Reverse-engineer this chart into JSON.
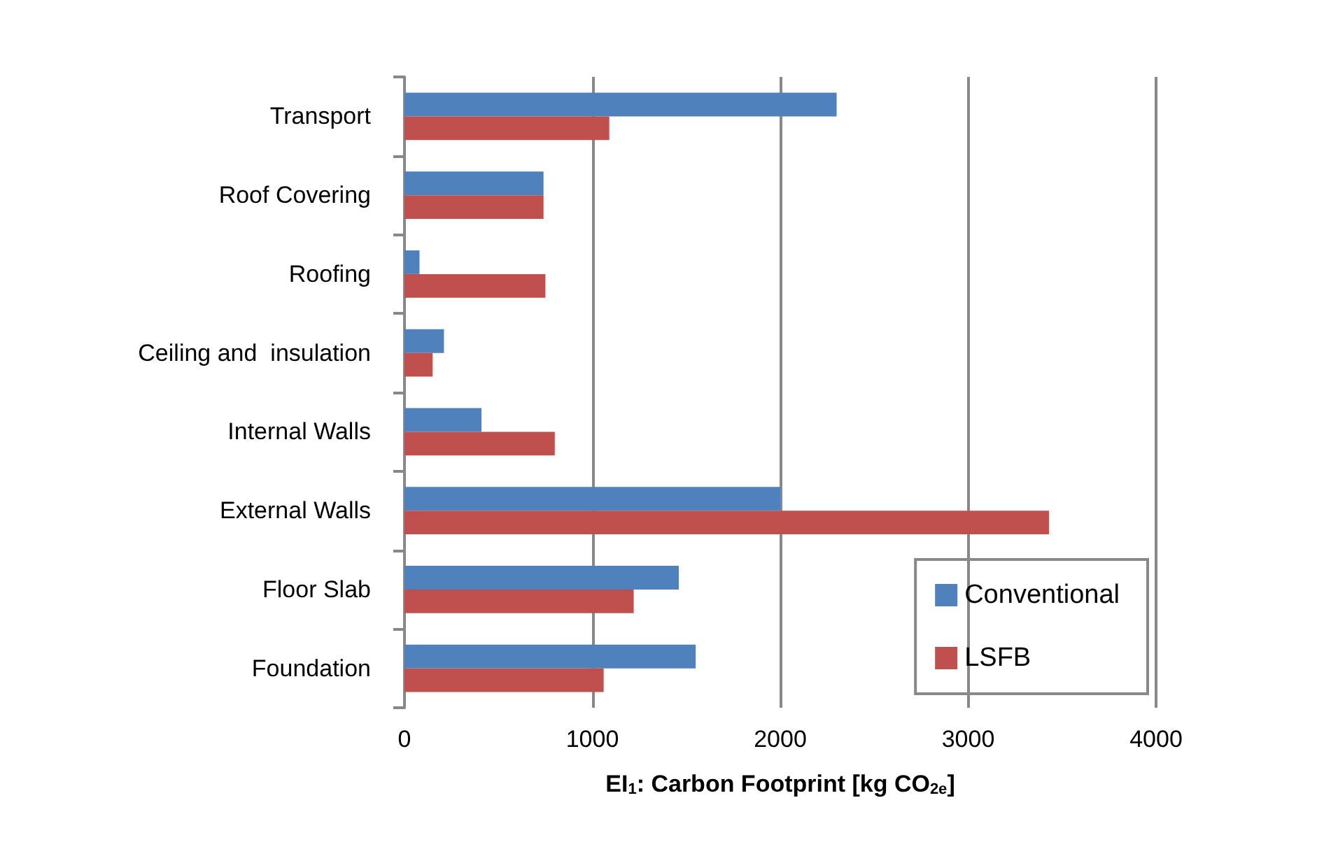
{
  "chart_data": {
    "type": "bar",
    "orientation": "horizontal",
    "categories": [
      "Transport",
      "Roof Covering",
      "Roofing",
      "Ceiling and  insulation",
      "Internal Walls",
      "External Walls",
      "Floor Slab",
      "Foundation"
    ],
    "series": [
      {
        "name": "Conventional",
        "color": "#4f81bd",
        "values": [
          2300,
          740,
          80,
          210,
          410,
          2000,
          1460,
          1550
        ]
      },
      {
        "name": "LSFB",
        "color": "#c0504d",
        "values": [
          1090,
          740,
          750,
          150,
          800,
          3430,
          1220,
          1060
        ]
      }
    ],
    "xlabel": "EI$_{1}$: Carbon Footprint [kg CO$_{2e}$]",
    "xlim": [
      0,
      4000
    ],
    "xticks": [
      0,
      1000,
      2000,
      3000,
      4000
    ],
    "grid": "x",
    "legend": "bottom right"
  }
}
